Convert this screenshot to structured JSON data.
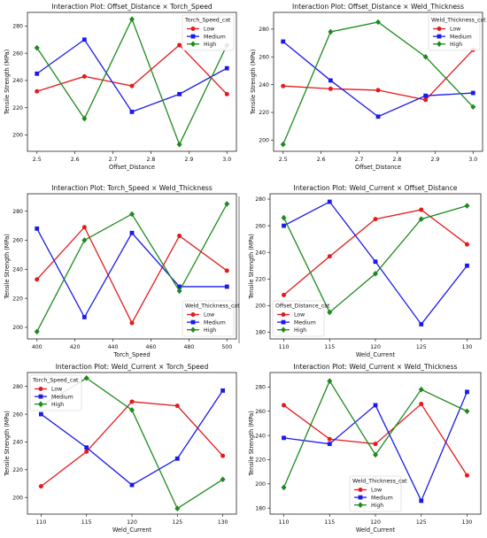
{
  "colors": {
    "Low": "#e41a1c",
    "Medium": "#1a1aeb",
    "High": "#1e8a1e"
  },
  "markers": {
    "Low": "circle",
    "Medium": "square",
    "High": "diamond"
  },
  "chart_data": [
    {
      "type": "line",
      "title": "Interaction Plot: Offset_Distance × Torch_Speed",
      "xlabel": "Offset_Distance",
      "ylabel": "Tensile Strength (MPa)",
      "x": [
        2.5,
        2.625,
        2.75,
        2.875,
        3.0
      ],
      "xticks": [
        "2.5",
        "2.6",
        "2.7",
        "2.8",
        "2.9",
        "3.0"
      ],
      "xlim": [
        2.475,
        3.025
      ],
      "yticks": [
        "200",
        "220",
        "240",
        "260",
        "280"
      ],
      "ylim": [
        188,
        290
      ],
      "legend_title": "Torch_Speed_cat",
      "legend_loc": "top-right",
      "series": [
        {
          "name": "Low",
          "values": [
            232,
            243,
            236,
            266,
            230
          ]
        },
        {
          "name": "Medium",
          "values": [
            245,
            270,
            217,
            230,
            249
          ]
        },
        {
          "name": "High",
          "values": [
            264,
            212,
            285,
            193,
            266
          ]
        }
      ]
    },
    {
      "type": "line",
      "title": "Interaction Plot: Offset_Distance × Weld_Thickness",
      "xlabel": "Offset_Distance",
      "ylabel": "Tensile Strength (MPa)",
      "x": [
        2.5,
        2.625,
        2.75,
        2.875,
        3.0
      ],
      "xticks": [
        "2.5",
        "2.6",
        "2.7",
        "2.8",
        "2.9",
        "3.0"
      ],
      "xlim": [
        2.475,
        3.025
      ],
      "yticks": [
        "200",
        "220",
        "240",
        "260",
        "280"
      ],
      "ylim": [
        192,
        292
      ],
      "legend_title": "Weld_Thickness_cat",
      "legend_loc": "top-right",
      "series": [
        {
          "name": "Low",
          "values": [
            239,
            237,
            236,
            229,
            265
          ]
        },
        {
          "name": "Medium",
          "values": [
            271,
            243,
            217,
            232,
            234
          ]
        },
        {
          "name": "High",
          "values": [
            197,
            278,
            285,
            260,
            224
          ]
        }
      ]
    },
    {
      "type": "line",
      "title": "Interaction Plot: Torch_Speed × Weld_Thickness",
      "xlabel": "Torch_Speed",
      "ylabel": "Tensile Strength (MPa)",
      "x": [
        400,
        425,
        450,
        475,
        500
      ],
      "xticks": [
        "400",
        "420",
        "440",
        "460",
        "480",
        "500"
      ],
      "xlim": [
        395,
        505
      ],
      "yticks": [
        "200",
        "220",
        "240",
        "260",
        "280"
      ],
      "ylim": [
        192,
        292
      ],
      "legend_title": "Weld_Thickness_cat",
      "legend_loc": "bottom-right",
      "series": [
        {
          "name": "Low",
          "values": [
            233,
            269,
            203,
            263,
            239
          ]
        },
        {
          "name": "Medium",
          "values": [
            268,
            207,
            265,
            228,
            228
          ]
        },
        {
          "name": "High",
          "values": [
            197,
            260,
            278,
            225,
            285
          ]
        }
      ]
    },
    {
      "type": "line",
      "title": "Interaction Plot: Weld_Current × Offset_Distance",
      "xlabel": "Weld_Current",
      "ylabel": "Tensile Strength (MPa)",
      "x": [
        110,
        115,
        120,
        125,
        130
      ],
      "xticks": [
        "110",
        "115",
        "120",
        "125",
        "130"
      ],
      "xlim": [
        108.5,
        131.5
      ],
      "yticks": [
        "180",
        "200",
        "220",
        "240",
        "260",
        "280"
      ],
      "ylim": [
        175,
        284
      ],
      "legend_title": "Offset_Distance_cat",
      "legend_loc": "bottom-left",
      "series": [
        {
          "name": "Low",
          "values": [
            208,
            237,
            265,
            272,
            246
          ]
        },
        {
          "name": "Medium",
          "values": [
            260,
            278,
            233,
            186,
            230
          ]
        },
        {
          "name": "High",
          "values": [
            266,
            195,
            224,
            265,
            275
          ]
        }
      ]
    },
    {
      "type": "line",
      "title": "Interaction Plot: Weld_Current × Torch_Speed",
      "xlabel": "Weld_Current",
      "ylabel": "Tensile Strength (MPa)",
      "x": [
        110,
        115,
        120,
        125,
        130
      ],
      "xticks": [
        "110",
        "115",
        "120",
        "125",
        "130"
      ],
      "xlim": [
        108.5,
        131.5
      ],
      "yticks": [
        "200",
        "220",
        "240",
        "260",
        "280"
      ],
      "ylim": [
        188,
        290
      ],
      "legend_title": "Torch_Speed_cat",
      "legend_loc": "top-left",
      "series": [
        {
          "name": "Low",
          "values": [
            208,
            233,
            269,
            266,
            230
          ]
        },
        {
          "name": "Medium",
          "values": [
            260,
            236,
            209,
            228,
            277
          ]
        },
        {
          "name": "High",
          "values": [
            266,
            286,
            263,
            192,
            213
          ]
        }
      ]
    },
    {
      "type": "line",
      "title": "Interaction Plot: Weld_Current × Weld_Thickness",
      "xlabel": "Weld_Current",
      "ylabel": "Tensile Strength (MPa)",
      "x": [
        110,
        115,
        120,
        125,
        130
      ],
      "xticks": [
        "110",
        "115",
        "120",
        "125",
        "130"
      ],
      "xlim": [
        108.5,
        131.5
      ],
      "yticks": [
        "180",
        "200",
        "220",
        "240",
        "260",
        "280"
      ],
      "ylim": [
        175,
        292
      ],
      "legend_title": "Weld_Thickness_cat",
      "legend_loc": "bottom-center",
      "series": [
        {
          "name": "Low",
          "values": [
            265,
            237,
            233,
            266,
            207
          ]
        },
        {
          "name": "Medium",
          "values": [
            238,
            233,
            265,
            186,
            276
          ]
        },
        {
          "name": "High",
          "values": [
            197,
            285,
            224,
            278,
            260
          ]
        }
      ]
    }
  ]
}
